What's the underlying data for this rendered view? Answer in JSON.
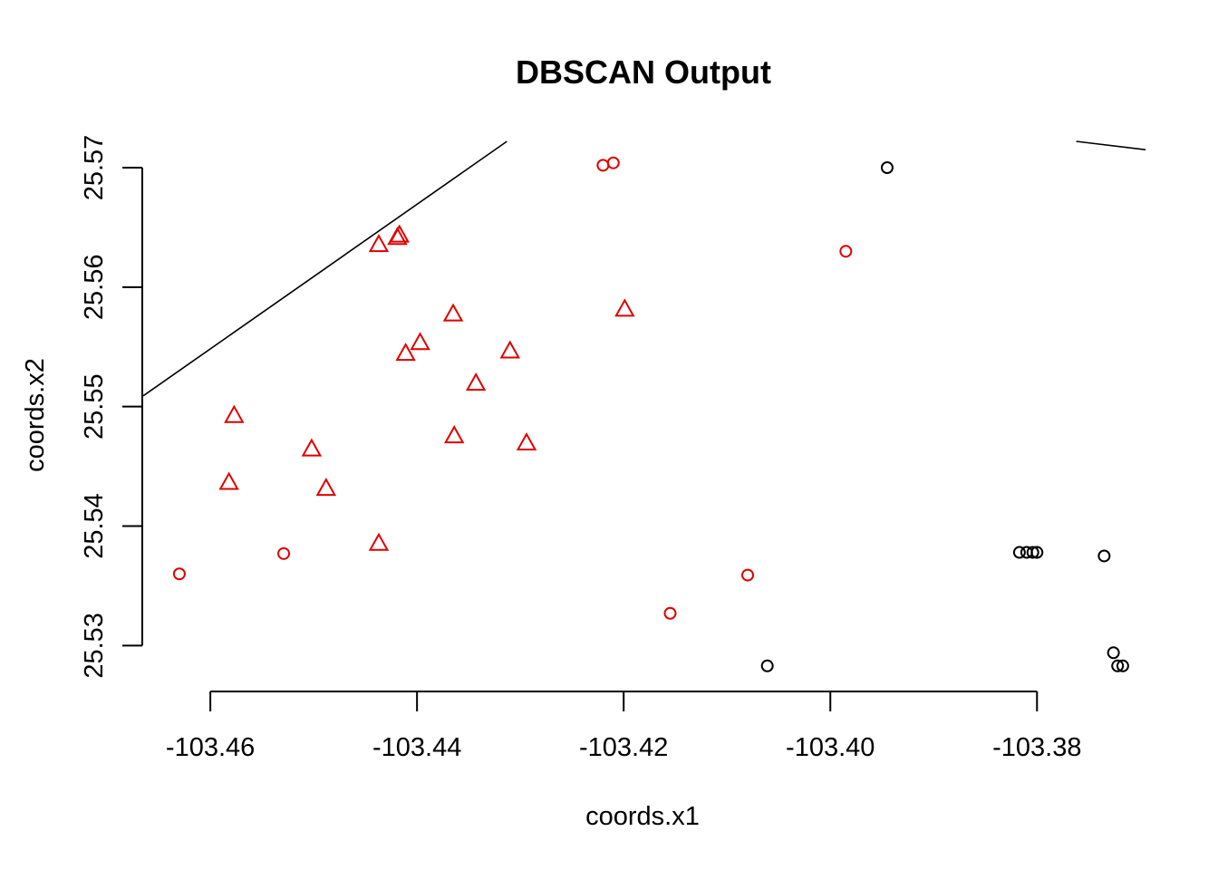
{
  "chart_data": {
    "type": "scatter",
    "title": "DBSCAN Output",
    "xlabel": "coords.x1",
    "ylabel": "coords.x2",
    "xlim": [
      -103.4665,
      -103.3695
    ],
    "ylim": [
      25.5276,
      25.5722
    ],
    "x_ticks": [
      -103.46,
      -103.44,
      -103.42,
      -103.4,
      -103.38
    ],
    "x_tick_labels": [
      "-103.46",
      "-103.44",
      "-103.42",
      "-103.40",
      "-103.38"
    ],
    "y_ticks": [
      25.53,
      25.54,
      25.55,
      25.56,
      25.57
    ],
    "y_tick_labels": [
      "25.53",
      "25.54",
      "25.55",
      "25.56",
      "25.57"
    ],
    "grid": false,
    "legend": "none",
    "colors": {
      "cluster": "#df0000",
      "noise": "#000000"
    },
    "series": [
      {
        "marker": "triangle",
        "color": "#df0000",
        "points": [
          [
            -103.4437,
            25.5635
          ],
          [
            -103.4419,
            25.5641
          ],
          [
            -103.4417,
            25.5643
          ],
          [
            -103.4365,
            25.5577
          ],
          [
            -103.4199,
            25.5581
          ],
          [
            -103.4397,
            25.5553
          ],
          [
            -103.4411,
            25.5544
          ],
          [
            -103.431,
            25.5546
          ],
          [
            -103.4343,
            25.5519
          ],
          [
            -103.4577,
            25.5492
          ],
          [
            -103.4502,
            25.5464
          ],
          [
            -103.4364,
            25.5475
          ],
          [
            -103.4294,
            25.5469
          ],
          [
            -103.4582,
            25.5436
          ],
          [
            -103.4488,
            25.5431
          ],
          [
            -103.4437,
            25.5385
          ]
        ]
      },
      {
        "marker": "circle",
        "color": "#df0000",
        "points": [
          [
            -103.422,
            25.5702
          ],
          [
            -103.421,
            25.5704
          ],
          [
            -103.3985,
            25.563
          ],
          [
            -103.463,
            25.536
          ],
          [
            -103.4529,
            25.5377
          ],
          [
            -103.408,
            25.5359
          ],
          [
            -103.4155,
            25.5327
          ]
        ]
      },
      {
        "marker": "circle",
        "color": "#000000",
        "points": [
          [
            -103.3945,
            25.57
          ],
          [
            -103.3817,
            25.5378
          ],
          [
            -103.381,
            25.5378
          ],
          [
            -103.3804,
            25.5378
          ],
          [
            -103.38,
            25.5378
          ],
          [
            -103.3735,
            25.5375
          ],
          [
            -103.3726,
            25.5294
          ],
          [
            -103.3722,
            25.5283
          ],
          [
            -103.3717,
            25.5283
          ],
          [
            -103.4061,
            25.5283
          ]
        ]
      }
    ],
    "lines": [
      {
        "x": [
          -103.4665,
          -103.4313
        ],
        "y": [
          25.5509,
          25.5722
        ]
      },
      {
        "x": [
          -103.3762,
          -103.3695
        ],
        "y": [
          25.5722,
          25.5715
        ]
      }
    ]
  }
}
